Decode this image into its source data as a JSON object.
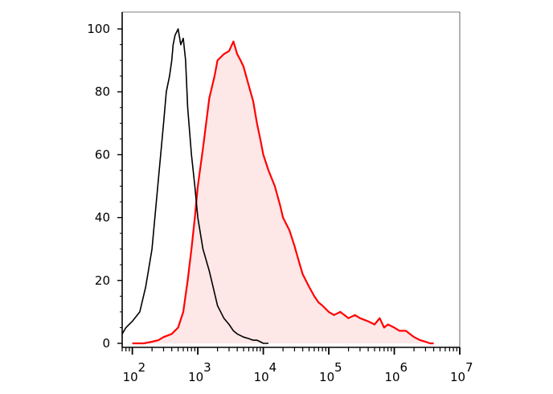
{
  "chart_data": {
    "type": "area",
    "title": "",
    "xlabel": "",
    "ylabel": "",
    "x_scale": "log",
    "xlim": [
      70,
      10000000
    ],
    "ylim": [
      0,
      100
    ],
    "grid": false,
    "y_ticks": [
      "0",
      "20",
      "40",
      "60",
      "80",
      "100"
    ],
    "y_tick_values": [
      0,
      20,
      40,
      60,
      80,
      100
    ],
    "x_ticks": [
      {
        "base": "10",
        "exp": "2",
        "value": 100
      },
      {
        "base": "10",
        "exp": "3",
        "value": 1000
      },
      {
        "base": "10",
        "exp": "4",
        "value": 10000
      },
      {
        "base": "10",
        "exp": "5",
        "value": 100000
      },
      {
        "base": "10",
        "exp": "6",
        "value": 1000000
      },
      {
        "base": "10",
        "exp": "7",
        "value": 10000000
      }
    ],
    "series": [
      {
        "color": "#000000",
        "fill": "none",
        "x": [
          70,
          80,
          100,
          130,
          160,
          200,
          250,
          300,
          330,
          370,
          400,
          420,
          450,
          500,
          550,
          600,
          650,
          700,
          800,
          900,
          1000,
          1200,
          1500,
          1800,
          2000,
          2500,
          3000,
          3500,
          4000,
          5000,
          6000,
          7000,
          8000,
          9000,
          10000,
          12000
        ],
        "y": [
          3,
          5,
          7,
          10,
          18,
          30,
          52,
          70,
          80,
          85,
          90,
          95,
          98,
          100,
          95,
          97,
          90,
          75,
          60,
          50,
          40,
          30,
          23,
          16,
          12,
          8,
          6,
          4,
          3,
          2,
          1.5,
          1,
          1,
          0.5,
          0,
          0
        ]
      },
      {
        "color": "#ff0000",
        "fill": "#fde7e7",
        "x": [
          100,
          150,
          200,
          250,
          300,
          400,
          500,
          600,
          700,
          800,
          900,
          1000,
          1200,
          1500,
          1800,
          2000,
          2500,
          3000,
          3500,
          4000,
          4500,
          5000,
          6000,
          7000,
          8000,
          9000,
          10000,
          12000,
          15000,
          18000,
          20000,
          25000,
          30000,
          35000,
          40000,
          50000,
          60000,
          70000,
          80000,
          100000,
          120000,
          150000,
          200000,
          250000,
          300000,
          400000,
          500000,
          600000,
          700000,
          800000,
          1000000,
          1200000,
          1500000,
          2000000,
          2500000,
          3000000,
          3500000,
          4000000
        ],
        "y": [
          0,
          0,
          0.5,
          1,
          2,
          3,
          5,
          10,
          20,
          30,
          40,
          50,
          62,
          78,
          85,
          90,
          92,
          93,
          96,
          92,
          90,
          88,
          82,
          77,
          70,
          65,
          60,
          55,
          50,
          44,
          40,
          36,
          31,
          26,
          22,
          18,
          15,
          13,
          12,
          10,
          9,
          10,
          8,
          9,
          8,
          7,
          6,
          8,
          5,
          6,
          5,
          4,
          4,
          2,
          1,
          0.5,
          0,
          0
        ]
      }
    ]
  }
}
